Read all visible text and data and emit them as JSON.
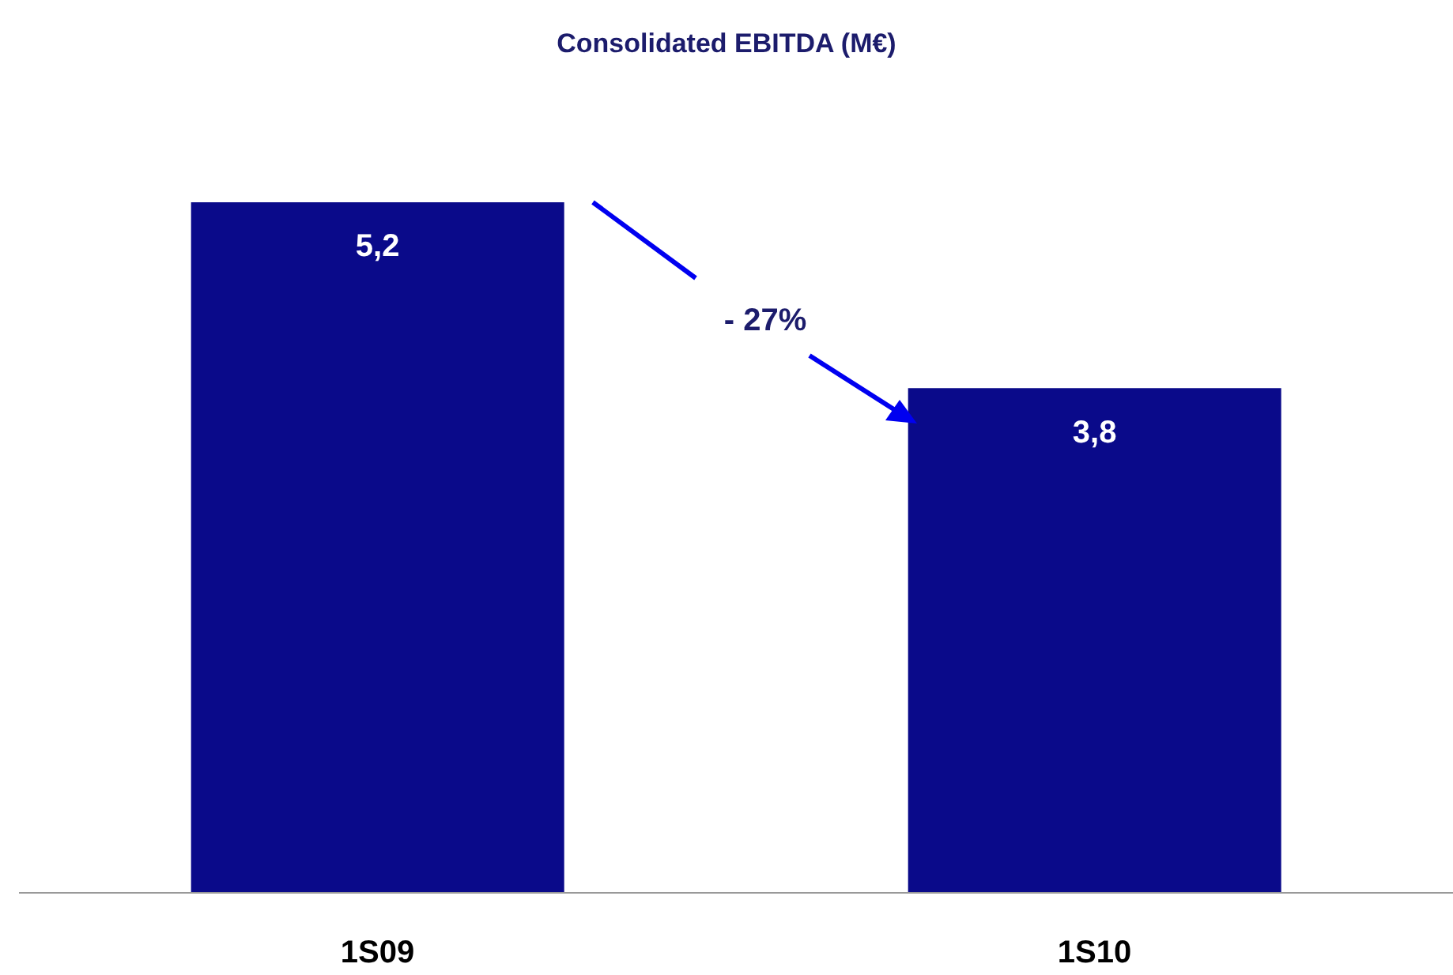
{
  "chart_data": {
    "type": "bar",
    "title": "Consolidated EBITDA (M€)",
    "categories": [
      "1S09",
      "1S10"
    ],
    "values": [
      5.2,
      3.8
    ],
    "value_labels": [
      "5,2",
      "3,8"
    ],
    "color": "#0a0a8a",
    "annotations": [
      "- 27%"
    ],
    "grid": false,
    "legend": false
  }
}
